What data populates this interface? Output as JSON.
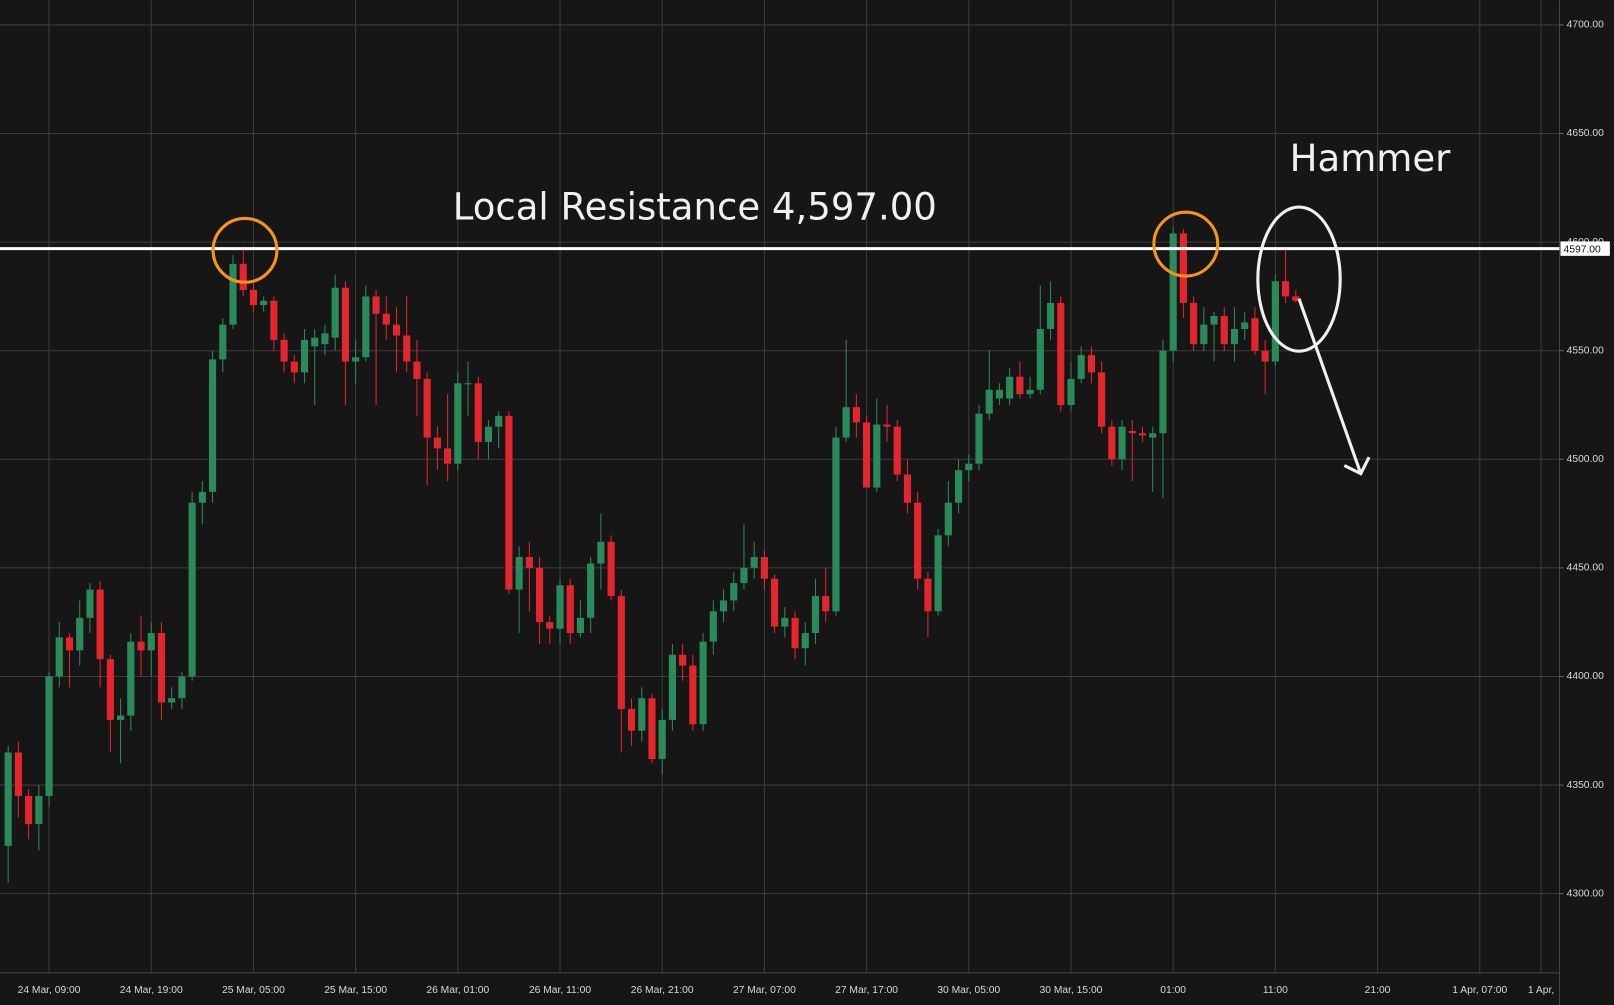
{
  "chart_data": {
    "type": "candlestick",
    "open": [
      4322,
      4365,
      4345,
      4332,
      4345,
      4400,
      4418,
      4412,
      4427,
      4440,
      4408,
      4380,
      4382,
      4416,
      4412,
      4420,
      4388,
      4390,
      4400,
      4480,
      4485,
      4546,
      4562,
      4590,
      4578,
      4571,
      4573,
      4555,
      4545,
      4540,
      4552,
      4553,
      4556,
      4579,
      4545,
      4547,
      4575,
      4567,
      4562,
      4557,
      4545,
      4537,
      4510,
      4505,
      4498,
      4535,
      4535,
      4508,
      4515,
      4520,
      4440,
      4455,
      4450,
      4425,
      4422,
      4442,
      4420,
      4427,
      4452,
      4462,
      4437,
      4385,
      4375,
      4390,
      4362,
      4380,
      4410,
      4405,
      4378,
      4416,
      4430,
      4435,
      4443,
      4450,
      4455,
      4445,
      4423,
      4427,
      4413,
      4420,
      4437,
      4430,
      4510,
      4524,
      4517,
      4487,
      4516,
      4515,
      4493,
      4480,
      4445,
      4430,
      4465,
      4480,
      4495,
      4498,
      4521,
      4528,
      4528,
      4538,
      4530,
      4532,
      4560,
      4572,
      4525,
      4537,
      4548,
      4540,
      4515,
      4500,
      4513,
      4512,
      4510,
      4512,
      4550,
      4604,
      4572,
      4553,
      4562,
      4566,
      4553,
      4560,
      4565,
      4550,
      4545,
      4582,
      4575
    ],
    "high": [
      4368,
      4370,
      4348,
      4350,
      4402,
      4425,
      4420,
      4435,
      4443,
      4444,
      4410,
      4390,
      4420,
      4428,
      4425,
      4425,
      4395,
      4402,
      4485,
      4490,
      4550,
      4565,
      4594,
      4598,
      4582,
      4575,
      4575,
      4558,
      4548,
      4560,
      4560,
      4562,
      4585,
      4582,
      4555,
      4580,
      4578,
      4575,
      4570,
      4575,
      4555,
      4540,
      4515,
      4530,
      4540,
      4545,
      4538,
      4518,
      4522,
      4522,
      4460,
      4462,
      4455,
      4428,
      4445,
      4445,
      4435,
      4455,
      4475,
      4465,
      4440,
      4390,
      4395,
      4392,
      4385,
      4415,
      4415,
      4410,
      4420,
      4435,
      4440,
      4448,
      4470,
      4462,
      4458,
      4447,
      4432,
      4430,
      4425,
      4445,
      4450,
      4515,
      4555,
      4530,
      4520,
      4528,
      4525,
      4518,
      4500,
      4485,
      4448,
      4468,
      4490,
      4500,
      4502,
      4525,
      4550,
      4535,
      4542,
      4545,
      4538,
      4580,
      4582,
      4575,
      4545,
      4552,
      4552,
      4545,
      4518,
      4518,
      4518,
      4515,
      4515,
      4555,
      4607,
      4606,
      4575,
      4570,
      4568,
      4570,
      4570,
      4568,
      4570,
      4555,
      4585,
      4597,
      4578
    ],
    "low": [
      4305,
      4335,
      4325,
      4320,
      4340,
      4395,
      4395,
      4405,
      4420,
      4395,
      4365,
      4360,
      4375,
      4400,
      4400,
      4380,
      4385,
      4385,
      4398,
      4470,
      4480,
      4540,
      4560,
      4575,
      4568,
      4568,
      4550,
      4540,
      4535,
      4535,
      4525,
      4548,
      4550,
      4525,
      4535,
      4545,
      4525,
      4555,
      4540,
      4540,
      4520,
      4488,
      4495,
      4490,
      4495,
      4520,
      4500,
      4500,
      4505,
      4438,
      4420,
      4430,
      4415,
      4415,
      4415,
      4415,
      4418,
      4420,
      4440,
      4435,
      4365,
      4368,
      4370,
      4360,
      4355,
      4375,
      4398,
      4375,
      4375,
      4410,
      4425,
      4430,
      4440,
      4445,
      4440,
      4420,
      4418,
      4408,
      4405,
      4415,
      4425,
      4428,
      4508,
      4510,
      4487,
      4485,
      4508,
      4490,
      4475,
      4440,
      4418,
      4428,
      4460,
      4475,
      4490,
      4495,
      4518,
      4525,
      4525,
      4528,
      4528,
      4530,
      4555,
      4522,
      4522,
      4535,
      4535,
      4512,
      4497,
      4495,
      4490,
      4508,
      4485,
      4482,
      4545,
      4565,
      4550,
      4550,
      4545,
      4550,
      4545,
      4555,
      4548,
      4530,
      4543,
      4572,
      4572
    ],
    "close": [
      4365,
      4345,
      4332,
      4345,
      4400,
      4418,
      4412,
      4427,
      4440,
      4408,
      4380,
      4382,
      4416,
      4412,
      4420,
      4388,
      4390,
      4400,
      4480,
      4485,
      4546,
      4562,
      4590,
      4578,
      4571,
      4573,
      4555,
      4545,
      4540,
      4555,
      4556,
      4558,
      4579,
      4545,
      4547,
      4575,
      4567,
      4562,
      4557,
      4545,
      4537,
      4510,
      4505,
      4498,
      4535,
      4535,
      4508,
      4515,
      4520,
      4440,
      4455,
      4450,
      4425,
      4422,
      4442,
      4420,
      4427,
      4452,
      4462,
      4437,
      4385,
      4375,
      4390,
      4362,
      4380,
      4410,
      4405,
      4378,
      4416,
      4430,
      4435,
      4443,
      4450,
      4455,
      4445,
      4423,
      4427,
      4413,
      4420,
      4437,
      4430,
      4510,
      4524,
      4517,
      4487,
      4516,
      4515,
      4493,
      4480,
      4445,
      4430,
      4465,
      4480,
      4495,
      4498,
      4521,
      4532,
      4532,
      4538,
      4530,
      4532,
      4560,
      4572,
      4525,
      4537,
      4548,
      4540,
      4515,
      4500,
      4515,
      4512,
      4511,
      4512,
      4550,
      4604,
      4572,
      4553,
      4562,
      4566,
      4553,
      4560,
      4563,
      4550,
      4545,
      4582,
      4575,
      4573
    ],
    "up_color": "#2b8a5a",
    "down_color": "#e3262d",
    "xlim": [
      -0.8,
      151.8
    ],
    "xticks": [
      {
        "value": 4,
        "label": "24 Mar, 09:00"
      },
      {
        "value": 14,
        "label": "24 Mar, 19:00"
      },
      {
        "value": 24,
        "label": "25 Mar, 05:00"
      },
      {
        "value": 34,
        "label": "25 Mar, 15:00"
      },
      {
        "value": 44,
        "label": "26 Mar, 01:00"
      },
      {
        "value": 54,
        "label": "26 Mar, 11:00"
      },
      {
        "value": 64,
        "label": "26 Mar, 21:00"
      },
      {
        "value": 74,
        "label": "27 Mar, 07:00"
      },
      {
        "value": 84,
        "label": "27 Mar, 17:00"
      },
      {
        "value": 94,
        "label": "30 Mar, 05:00"
      },
      {
        "value": 104,
        "label": "30 Mar, 15:00"
      },
      {
        "value": 114,
        "label": "01:00"
      },
      {
        "value": 124,
        "label": "11:00"
      },
      {
        "value": 134,
        "label": "21:00"
      },
      {
        "value": 144,
        "label": "1 Apr, 07:00"
      },
      {
        "value": 150,
        "label": "1 Apr,"
      }
    ],
    "ylim": [
      4263.5,
      4711.4
    ],
    "yticks": [
      {
        "value": 4300,
        "label": "4300.00"
      },
      {
        "value": 4350,
        "label": "4350.00"
      },
      {
        "value": 4400,
        "label": "4400.00"
      },
      {
        "value": 4450,
        "label": "4450.00"
      },
      {
        "value": 4500,
        "label": "4500.00"
      },
      {
        "value": 4550,
        "label": "4550.00"
      },
      {
        "value": 4600,
        "label": "4600.00"
      },
      {
        "value": 4650,
        "label": "4650.00"
      },
      {
        "value": 4700,
        "label": "4700.00"
      }
    ],
    "grid": true,
    "resistance": {
      "value": 4597,
      "label": "4597.00"
    },
    "annotations": [
      "Local Resistance 4,597.00",
      "Hammer"
    ]
  }
}
